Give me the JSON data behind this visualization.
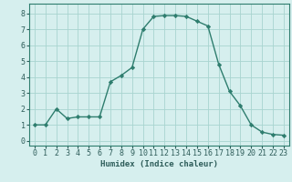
{
  "x": [
    0,
    1,
    2,
    3,
    4,
    5,
    6,
    7,
    8,
    9,
    10,
    11,
    12,
    13,
    14,
    15,
    16,
    17,
    18,
    19,
    20,
    21,
    22,
    23
  ],
  "y": [
    1.0,
    1.0,
    2.0,
    1.4,
    1.5,
    1.5,
    1.5,
    3.7,
    4.1,
    4.6,
    7.0,
    7.8,
    7.85,
    7.85,
    7.8,
    7.5,
    7.2,
    4.8,
    3.1,
    2.2,
    1.0,
    0.55,
    0.4,
    0.35
  ],
  "line_color": "#2e7d6e",
  "marker": "D",
  "marker_size": 2.2,
  "background_color": "#d6efee",
  "grid_color": "#a8d4d0",
  "xlabel": "Humidex (Indice chaleur)",
  "xlim": [
    -0.5,
    23.5
  ],
  "ylim": [
    -0.3,
    8.6
  ],
  "xticks": [
    0,
    1,
    2,
    3,
    4,
    5,
    6,
    7,
    8,
    9,
    10,
    11,
    12,
    13,
    14,
    15,
    16,
    17,
    18,
    19,
    20,
    21,
    22,
    23
  ],
  "yticks": [
    0,
    1,
    2,
    3,
    4,
    5,
    6,
    7,
    8
  ],
  "xlabel_fontsize": 6.5,
  "tick_fontsize": 6.0,
  "spine_color": "#2e7d6e"
}
